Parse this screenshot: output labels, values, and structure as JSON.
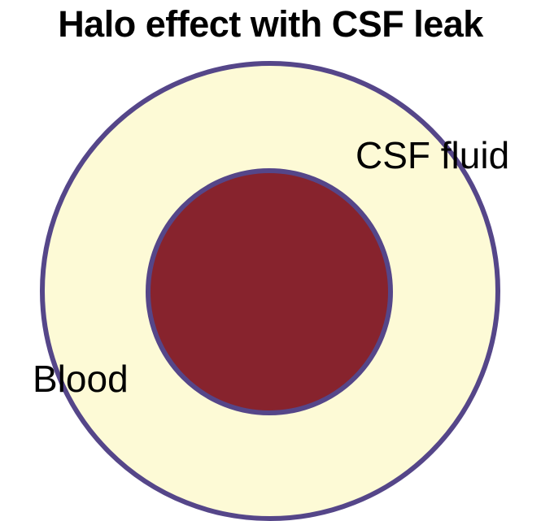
{
  "title": "Halo effect with CSF leak",
  "labels": {
    "outer": "CSF fluid",
    "inner": "Blood"
  },
  "colors": {
    "outer_fill": "#fdfad6",
    "inner_fill": "#87232d",
    "outline": "#554689",
    "text": "#000000"
  }
}
